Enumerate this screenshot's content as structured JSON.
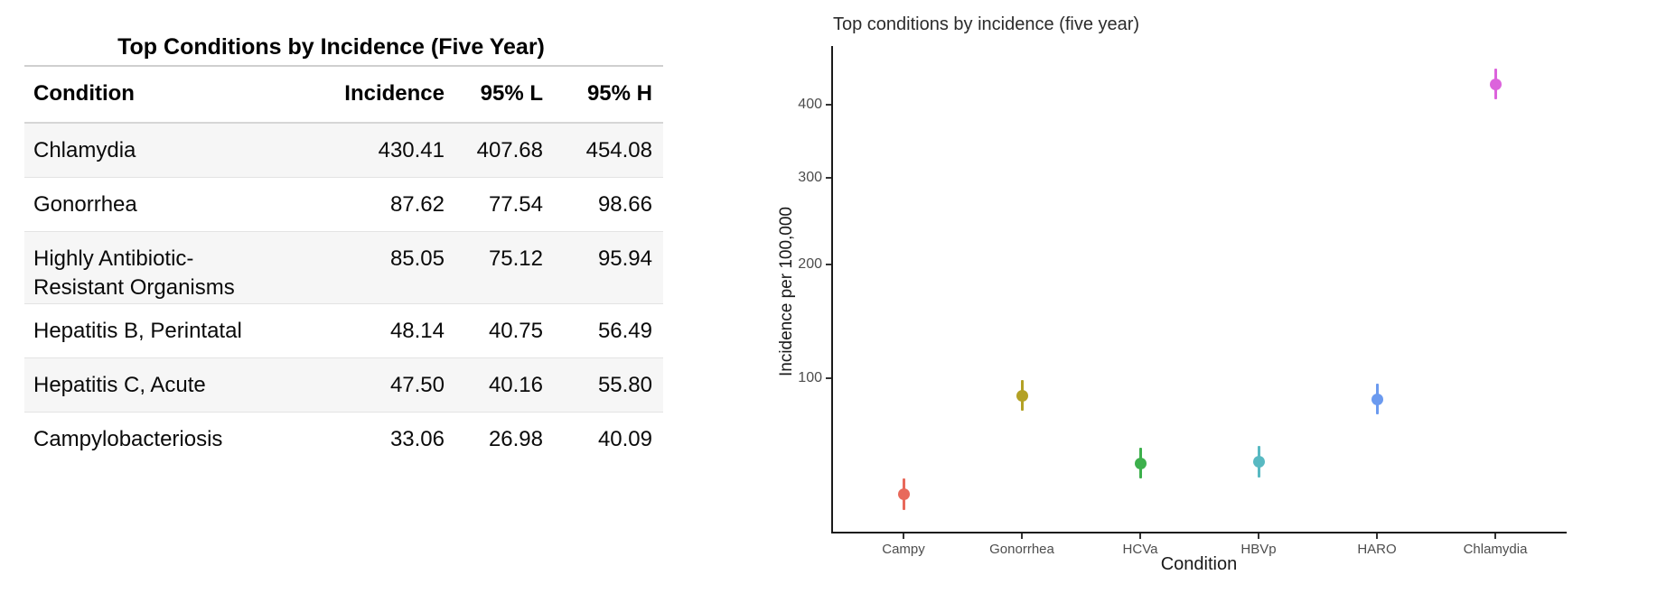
{
  "table": {
    "title": "Top Conditions by Incidence (Five Year)",
    "columns": [
      "Condition",
      "Incidence",
      "95% L",
      "95% H"
    ],
    "rows": [
      {
        "condition": "Chlamydia",
        "incidence": "430.41",
        "low": "407.68",
        "high": "454.08"
      },
      {
        "condition": "Gonorrhea",
        "incidence": "87.62",
        "low": "77.54",
        "high": "98.66"
      },
      {
        "condition": "Highly Antibiotic-Resistant Organisms",
        "incidence": "85.05",
        "low": "75.12",
        "high": "95.94"
      },
      {
        "condition": "Hepatitis B, Perintatal",
        "incidence": "48.14",
        "low": "40.75",
        "high": "56.49"
      },
      {
        "condition": "Hepatitis C, Acute",
        "incidence": "47.50",
        "low": "40.16",
        "high": "55.80"
      },
      {
        "condition": "Campylobacteriosis",
        "incidence": "33.06",
        "low": "26.98",
        "high": "40.09"
      }
    ]
  },
  "chart_data": {
    "type": "scatter",
    "title": "Top conditions by incidence (five year)",
    "xlabel": "Condition",
    "ylabel": "Incidence per 100,000",
    "y_scale": "sqrt",
    "grid": false,
    "legend": "none",
    "y_ticks": [
      100,
      200,
      300,
      400
    ],
    "categories": [
      "Campy",
      "Gonorrhea",
      "HCVa",
      "HBVp",
      "HARO",
      "Chlamydia"
    ],
    "series": [
      {
        "name": "Incidence per 100,000",
        "values": [
          33.06,
          87.62,
          47.5,
          48.14,
          85.05,
          430.41
        ],
        "ci_low": [
          26.98,
          77.54,
          40.16,
          40.75,
          75.12,
          407.68
        ],
        "ci_high": [
          40.09,
          98.66,
          55.8,
          56.49,
          95.94,
          454.08
        ]
      }
    ],
    "point_colors": [
      "#E8695B",
      "#B3A125",
      "#3DB04C",
      "#58B9C2",
      "#6B9AEF",
      "#DC63DC"
    ]
  }
}
